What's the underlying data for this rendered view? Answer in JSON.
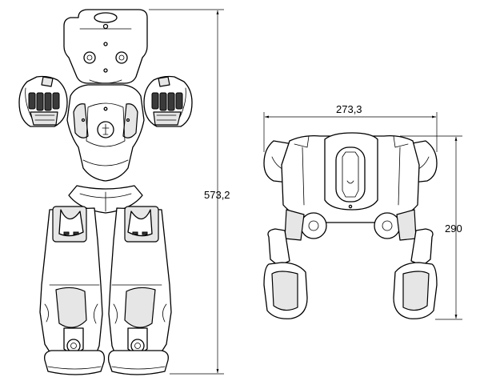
{
  "diagram": {
    "front_view": {
      "height_label": "573,2"
    },
    "side_view": {
      "width_label": "273,3",
      "height_label": "290"
    }
  }
}
